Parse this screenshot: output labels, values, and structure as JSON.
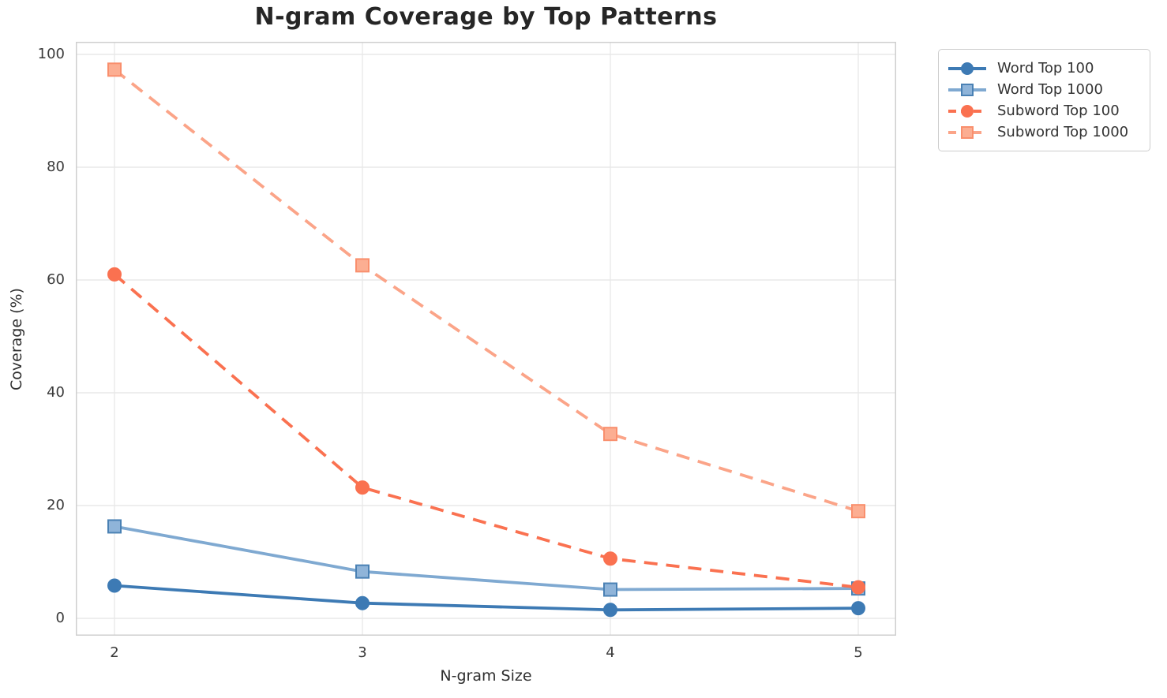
{
  "chart_data": {
    "type": "line",
    "title": "N-gram Coverage by Top Patterns",
    "xlabel": "N-gram Size",
    "ylabel": "Coverage (%)",
    "x": [
      2,
      3,
      4,
      5
    ],
    "xlim": [
      2,
      5
    ],
    "ylim": [
      0,
      100
    ],
    "x_ticks": [
      "2",
      "3",
      "4",
      "5"
    ],
    "y_ticks": [
      "0",
      "20",
      "40",
      "60",
      "80",
      "100"
    ],
    "grid": true,
    "legend_position": "outside-top-right",
    "series": [
      {
        "name": "Word Top 100",
        "values": [
          5.8,
          2.7,
          1.5,
          1.8
        ],
        "color": "#3d7ab4",
        "line_style": "solid",
        "marker": "circle",
        "marker_fill": "#3d7ab4",
        "marker_stroke": "#3d7ab4"
      },
      {
        "name": "Word Top 1000",
        "values": [
          16.3,
          8.3,
          5.1,
          5.3
        ],
        "color": "#7fa9d1",
        "line_style": "solid",
        "marker": "square",
        "marker_fill": "#8fb4d9",
        "marker_stroke": "#4a81b4"
      },
      {
        "name": "Subword Top 100",
        "values": [
          61.0,
          23.2,
          10.6,
          5.5
        ],
        "color": "#fa7150",
        "line_style": "dashed",
        "marker": "circle",
        "marker_fill": "#fa7150",
        "marker_stroke": "#fa7150"
      },
      {
        "name": "Subword Top 1000",
        "values": [
          97.3,
          62.6,
          32.7,
          19.0
        ],
        "color": "#fba488",
        "line_style": "dashed",
        "marker": "square",
        "marker_fill": "#fcae92",
        "marker_stroke": "#f98f6d"
      }
    ]
  }
}
